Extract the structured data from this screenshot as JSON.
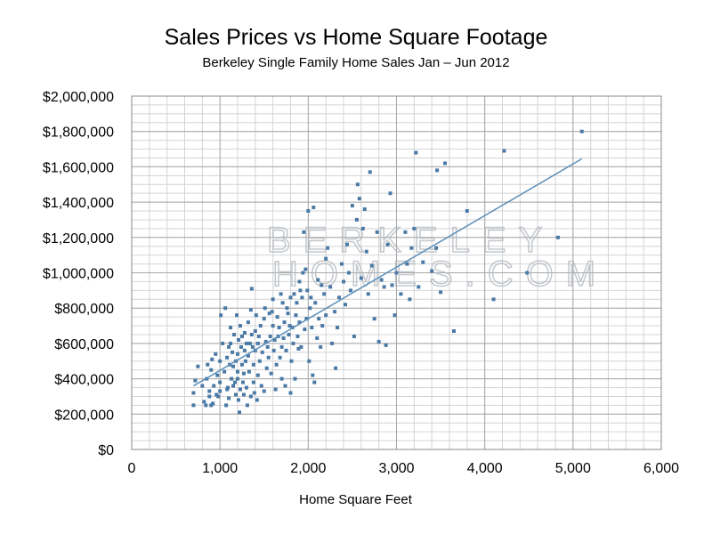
{
  "chart_data": {
    "type": "scatter",
    "title": "Sales Prices vs Home Square Footage",
    "subtitle": "Berkeley Single Family Home Sales Jan – Jun 2012",
    "xlabel": "Home Square Feet",
    "ylabel": "",
    "xlim": [
      0,
      6000
    ],
    "ylim": [
      0,
      2000000
    ],
    "grid": true,
    "x_ticks": [
      "0",
      "1,000",
      "2,000",
      "3,000",
      "4,000",
      "5,000",
      "6,000"
    ],
    "y_ticks": [
      "$0",
      "$200,000",
      "$400,000",
      "$600,000",
      "$800,000",
      "$1,000,000",
      "$1,200,000",
      "$1,400,000",
      "$1,600,000",
      "$1,800,000",
      "$2,000,000"
    ],
    "point_color": "#4a79a5",
    "trendline": {
      "color": "#5b8fb9",
      "x": [
        700,
        5100
      ],
      "y": [
        360000,
        1645000
      ]
    },
    "watermark": [
      "BERKELEY",
      "HOMES.COM"
    ],
    "points": [
      [
        700,
        320000
      ],
      [
        700,
        250000
      ],
      [
        720,
        390000
      ],
      [
        750,
        470000
      ],
      [
        800,
        360000
      ],
      [
        820,
        270000
      ],
      [
        840,
        250000
      ],
      [
        850,
        400000
      ],
      [
        860,
        480000
      ],
      [
        880,
        330000
      ],
      [
        880,
        300000
      ],
      [
        900,
        450000
      ],
      [
        900,
        250000
      ],
      [
        910,
        510000
      ],
      [
        920,
        260000
      ],
      [
        930,
        360000
      ],
      [
        950,
        540000
      ],
      [
        960,
        310000
      ],
      [
        970,
        420000
      ],
      [
        980,
        300000
      ],
      [
        1000,
        500000
      ],
      [
        1000,
        380000
      ],
      [
        1000,
        330000
      ],
      [
        1010,
        760000
      ],
      [
        1030,
        600000
      ],
      [
        1050,
        440000
      ],
      [
        1060,
        800000
      ],
      [
        1070,
        250000
      ],
      [
        1080,
        340000
      ],
      [
        1080,
        520000
      ],
      [
        1090,
        350000
      ],
      [
        1100,
        290000
      ],
      [
        1100,
        580000
      ],
      [
        1110,
        480000
      ],
      [
        1120,
        690000
      ],
      [
        1120,
        600000
      ],
      [
        1130,
        400000
      ],
      [
        1140,
        550000
      ],
      [
        1150,
        470000
      ],
      [
        1150,
        360000
      ],
      [
        1160,
        650000
      ],
      [
        1170,
        380000
      ],
      [
        1180,
        310000
      ],
      [
        1180,
        500000
      ],
      [
        1190,
        760000
      ],
      [
        1200,
        540000
      ],
      [
        1200,
        440000
      ],
      [
        1200,
        400000
      ],
      [
        1210,
        620000
      ],
      [
        1210,
        280000
      ],
      [
        1220,
        210000
      ],
      [
        1230,
        340000
      ],
      [
        1230,
        700000
      ],
      [
        1240,
        580000
      ],
      [
        1250,
        480000
      ],
      [
        1250,
        640000
      ],
      [
        1260,
        380000
      ],
      [
        1270,
        430000
      ],
      [
        1270,
        310000
      ],
      [
        1280,
        560000
      ],
      [
        1280,
        660000
      ],
      [
        1290,
        500000
      ],
      [
        1300,
        600000
      ],
      [
        1300,
        350000
      ],
      [
        1310,
        250000
      ],
      [
        1320,
        530000
      ],
      [
        1320,
        720000
      ],
      [
        1330,
        440000
      ],
      [
        1340,
        600000
      ],
      [
        1350,
        300000
      ],
      [
        1350,
        790000
      ],
      [
        1360,
        910000
      ],
      [
        1360,
        650000
      ],
      [
        1370,
        580000
      ],
      [
        1380,
        480000
      ],
      [
        1380,
        380000
      ],
      [
        1390,
        320000
      ],
      [
        1400,
        560000
      ],
      [
        1400,
        670000
      ],
      [
        1410,
        760000
      ],
      [
        1420,
        280000
      ],
      [
        1430,
        600000
      ],
      [
        1430,
        420000
      ],
      [
        1440,
        640000
      ],
      [
        1450,
        500000
      ],
      [
        1460,
        700000
      ],
      [
        1470,
        360000
      ],
      [
        1480,
        550000
      ],
      [
        1500,
        330000
      ],
      [
        1500,
        740000
      ],
      [
        1510,
        800000
      ],
      [
        1520,
        610000
      ],
      [
        1530,
        460000
      ],
      [
        1540,
        580000
      ],
      [
        1550,
        520000
      ],
      [
        1560,
        770000
      ],
      [
        1570,
        640000
      ],
      [
        1580,
        430000
      ],
      [
        1590,
        780000
      ],
      [
        1600,
        850000
      ],
      [
        1600,
        700000
      ],
      [
        1610,
        560000
      ],
      [
        1620,
        620000
      ],
      [
        1630,
        340000
      ],
      [
        1640,
        480000
      ],
      [
        1650,
        750000
      ],
      [
        1660,
        640000
      ],
      [
        1670,
        690000
      ],
      [
        1680,
        520000
      ],
      [
        1690,
        880000
      ],
      [
        1700,
        580000
      ],
      [
        1700,
        400000
      ],
      [
        1710,
        830000
      ],
      [
        1720,
        630000
      ],
      [
        1730,
        720000
      ],
      [
        1740,
        360000
      ],
      [
        1750,
        560000
      ],
      [
        1760,
        800000
      ],
      [
        1770,
        770000
      ],
      [
        1780,
        650000
      ],
      [
        1790,
        700000
      ],
      [
        1800,
        320000
      ],
      [
        1800,
        860000
      ],
      [
        1810,
        500000
      ],
      [
        1820,
        690000
      ],
      [
        1830,
        600000
      ],
      [
        1840,
        880000
      ],
      [
        1850,
        400000
      ],
      [
        1860,
        760000
      ],
      [
        1870,
        830000
      ],
      [
        1880,
        640000
      ],
      [
        1890,
        570000
      ],
      [
        1900,
        720000
      ],
      [
        1900,
        950000
      ],
      [
        1910,
        900000
      ],
      [
        1920,
        580000
      ],
      [
        1930,
        860000
      ],
      [
        1940,
        1000000
      ],
      [
        1950,
        1230000
      ],
      [
        1960,
        680000
      ],
      [
        1970,
        1020000
      ],
      [
        1980,
        740000
      ],
      [
        1990,
        900000
      ],
      [
        2000,
        1350000
      ],
      [
        2010,
        500000
      ],
      [
        2020,
        800000
      ],
      [
        2030,
        860000
      ],
      [
        2040,
        690000
      ],
      [
        2050,
        420000
      ],
      [
        2060,
        1370000
      ],
      [
        2070,
        380000
      ],
      [
        2080,
        830000
      ],
      [
        2100,
        630000
      ],
      [
        2110,
        960000
      ],
      [
        2120,
        740000
      ],
      [
        2140,
        580000
      ],
      [
        2150,
        930000
      ],
      [
        2160,
        700000
      ],
      [
        2180,
        880000
      ],
      [
        2200,
        760000
      ],
      [
        2200,
        1080000
      ],
      [
        2220,
        1140000
      ],
      [
        2250,
        920000
      ],
      [
        2270,
        600000
      ],
      [
        2300,
        780000
      ],
      [
        2310,
        460000
      ],
      [
        2330,
        690000
      ],
      [
        2350,
        860000
      ],
      [
        2380,
        1050000
      ],
      [
        2400,
        950000
      ],
      [
        2420,
        820000
      ],
      [
        2440,
        1160000
      ],
      [
        2460,
        1000000
      ],
      [
        2480,
        900000
      ],
      [
        2500,
        1380000
      ],
      [
        2520,
        640000
      ],
      [
        2550,
        1300000
      ],
      [
        2560,
        1500000
      ],
      [
        2580,
        1420000
      ],
      [
        2600,
        970000
      ],
      [
        2620,
        1250000
      ],
      [
        2640,
        1360000
      ],
      [
        2660,
        1120000
      ],
      [
        2680,
        880000
      ],
      [
        2700,
        1570000
      ],
      [
        2720,
        1040000
      ],
      [
        2750,
        740000
      ],
      [
        2780,
        1230000
      ],
      [
        2800,
        610000
      ],
      [
        2830,
        960000
      ],
      [
        2860,
        920000
      ],
      [
        2880,
        590000
      ],
      [
        2900,
        1160000
      ],
      [
        2930,
        1450000
      ],
      [
        2950,
        930000
      ],
      [
        2980,
        760000
      ],
      [
        3000,
        1000000
      ],
      [
        3050,
        880000
      ],
      [
        3100,
        1230000
      ],
      [
        3120,
        1050000
      ],
      [
        3150,
        850000
      ],
      [
        3170,
        1140000
      ],
      [
        3200,
        1250000
      ],
      [
        3220,
        1680000
      ],
      [
        3250,
        920000
      ],
      [
        3300,
        1060000
      ],
      [
        3400,
        1010000
      ],
      [
        3450,
        1140000
      ],
      [
        3460,
        1580000
      ],
      [
        3500,
        890000
      ],
      [
        3550,
        1620000
      ],
      [
        3650,
        670000
      ],
      [
        3800,
        1350000
      ],
      [
        4100,
        850000
      ],
      [
        4220,
        1690000
      ],
      [
        4480,
        1000000
      ],
      [
        4830,
        1200000
      ],
      [
        5100,
        1800000
      ]
    ]
  }
}
